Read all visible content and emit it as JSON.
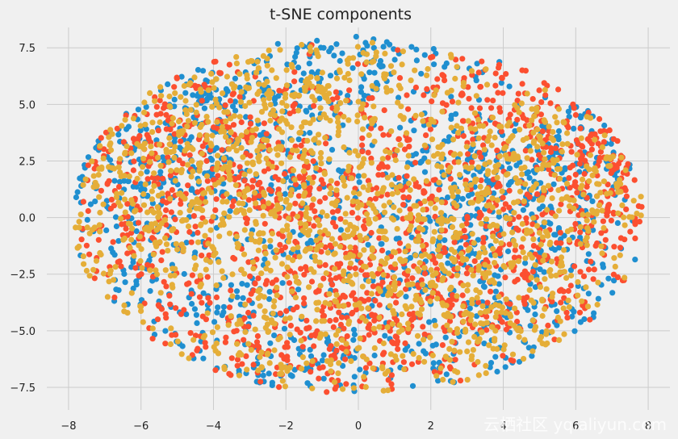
{
  "chart_data": {
    "type": "scatter",
    "title": "t-SNE components",
    "xlabel": "",
    "ylabel": "",
    "xlim": [
      -8.6,
      8.6
    ],
    "ylim": [
      -8.5,
      8.4
    ],
    "x_ticks": [
      -8,
      -6,
      -4,
      -2,
      0,
      2,
      4,
      6,
      8
    ],
    "y_ticks": [
      7.5,
      5.0,
      2.5,
      0.0,
      -2.5,
      -5.0,
      -7.5
    ],
    "x_tick_labels": [
      "−8",
      "−6",
      "−4",
      "−2",
      "0",
      "2",
      "4",
      "6",
      "8"
    ],
    "y_tick_labels": [
      "7.5",
      "5.0",
      "2.5",
      "0.0",
      "−2.5",
      "−5.0",
      "−7.5"
    ],
    "grid": true,
    "background": "#f0f0f0",
    "series": [
      {
        "color": "#1f8fd0",
        "points": "dense cloud covering roughly x −8..7.5, y −7.8..8"
      },
      {
        "color": "#fc4f30",
        "points": "dense cloud covering roughly x −7.5..8, y −8..7.3"
      },
      {
        "color": "#e5ae38",
        "points": "dense cloud covering roughly x −7.5..7, y −8.2..7.5"
      }
    ]
  },
  "watermark": "云栖社区 yq.aliyun.com"
}
